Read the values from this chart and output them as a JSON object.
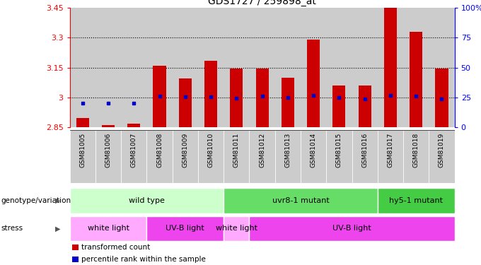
{
  "title": "GDS1727 / 259898_at",
  "samples": [
    "GSM81005",
    "GSM81006",
    "GSM81007",
    "GSM81008",
    "GSM81009",
    "GSM81010",
    "GSM81011",
    "GSM81012",
    "GSM81013",
    "GSM81014",
    "GSM81015",
    "GSM81016",
    "GSM81017",
    "GSM81018",
    "GSM81019"
  ],
  "red_values": [
    2.895,
    2.862,
    2.868,
    3.16,
    3.095,
    3.185,
    3.145,
    3.145,
    3.1,
    3.29,
    3.06,
    3.06,
    3.45,
    3.33,
    3.145
  ],
  "blue_values": [
    2.972,
    2.972,
    2.972,
    3.005,
    3.003,
    3.003,
    2.997,
    3.005,
    2.999,
    3.01,
    2.999,
    2.992,
    3.01,
    3.005,
    2.992
  ],
  "ylim_left": [
    2.85,
    3.45
  ],
  "ylim_right": [
    0,
    100
  ],
  "yticks_left": [
    2.85,
    3.0,
    3.15,
    3.3,
    3.45
  ],
  "ytick_labels_left": [
    "2.85",
    "3",
    "3.15",
    "3.3",
    "3.45"
  ],
  "yticks_right": [
    0,
    25,
    50,
    75,
    100
  ],
  "ytick_labels_right": [
    "0",
    "25",
    "50",
    "75",
    "100%"
  ],
  "hlines": [
    3.0,
    3.15,
    3.3
  ],
  "genotype_groups": [
    {
      "label": "wild type",
      "start": 0,
      "end": 6,
      "color": "#ccffcc"
    },
    {
      "label": "uvr8-1 mutant",
      "start": 6,
      "end": 12,
      "color": "#66dd66"
    },
    {
      "label": "hy5-1 mutant",
      "start": 12,
      "end": 15,
      "color": "#44cc44"
    }
  ],
  "stress_groups": [
    {
      "label": "white light",
      "start": 0,
      "end": 3,
      "color": "#ffaaff"
    },
    {
      "label": "UV-B light",
      "start": 3,
      "end": 6,
      "color": "#ee44ee"
    },
    {
      "label": "white light",
      "start": 6,
      "end": 7,
      "color": "#ffaaff"
    },
    {
      "label": "UV-B light",
      "start": 7,
      "end": 15,
      "color": "#ee44ee"
    }
  ],
  "legend_items": [
    {
      "label": "transformed count",
      "color": "#cc0000"
    },
    {
      "label": "percentile rank within the sample",
      "color": "#0000cc"
    }
  ],
  "bar_color": "#cc0000",
  "dot_color": "#0000cc",
  "bar_bottom": 2.85,
  "sample_bg_color": "#cccccc",
  "plot_bg_color": "#ffffff"
}
